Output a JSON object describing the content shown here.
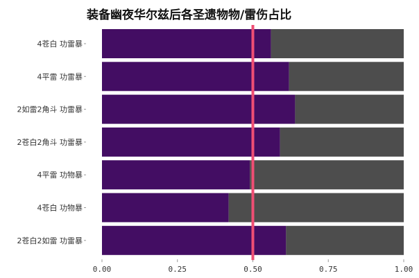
{
  "chart_data": {
    "type": "bar",
    "orientation": "horizontal",
    "stacked": true,
    "title": "装备幽夜华尔兹后各圣遗物物/雷伤占比",
    "categories": [
      "4苍白 功雷暴",
      "4平雷 功雷暴",
      "2如雷2角斗 功雷暴",
      "2苍白2角斗 功雷暴",
      "4平雷 功物暴",
      "4苍白 功物暴",
      "2苍白2如雷 功雷暴"
    ],
    "series": [
      {
        "values": [
          0.56,
          0.62,
          0.64,
          0.59,
          0.49,
          0.42,
          0.61
        ]
      },
      {
        "values": [
          0.44,
          0.38,
          0.36,
          0.41,
          0.51,
          0.58,
          0.39
        ]
      }
    ],
    "reference_line": 0.5,
    "xlim": [
      0,
      1
    ],
    "xticks": [
      "0.00",
      "0.25",
      "0.50",
      "0.75",
      "1.00"
    ],
    "xlabel": "",
    "ylabel": "",
    "grid": false,
    "legend": "none",
    "colors": {
      "series_1": "#430d63",
      "series_2": "#4d4d4d",
      "reference_line": "#ef4e74"
    }
  }
}
